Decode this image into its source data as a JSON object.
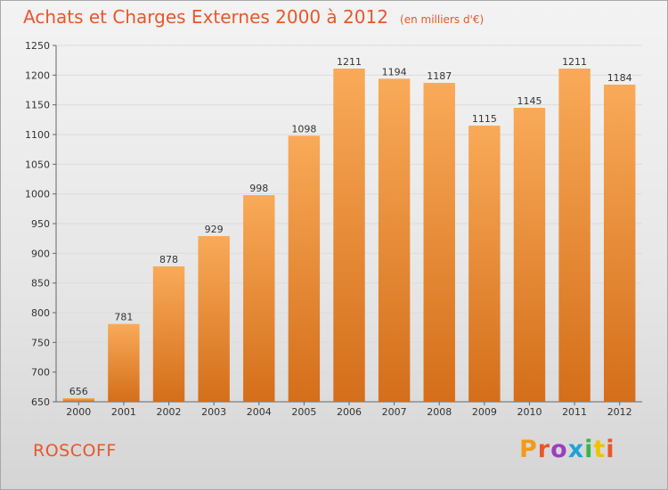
{
  "header": {
    "title": "Achats et Charges Externes 2000 à 2012",
    "subtitle": "(en milliers d'€)"
  },
  "footer": {
    "commune": "ROSCOFF",
    "brand": "Proxiti",
    "brand_colors": [
      "#f29a1a",
      "#e8572a",
      "#9b3fbf",
      "#1fa3d6",
      "#3cb34a",
      "#f2c200",
      "#e8572a"
    ]
  },
  "colors": {
    "bar_light": "#f9aa58",
    "bar_dark": "#d46e1a",
    "grid": "#dcdcdc",
    "axis": "#666666",
    "title": "#e8572a"
  },
  "chart_data": {
    "type": "bar",
    "title": "Achats et Charges Externes 2000 à 2012",
    "subtitle": "(en milliers d'€)",
    "categories": [
      "2000",
      "2001",
      "2002",
      "2003",
      "2004",
      "2005",
      "2006",
      "2007",
      "2008",
      "2009",
      "2010",
      "2011",
      "2012"
    ],
    "values": [
      656,
      781,
      878,
      929,
      998,
      1098,
      1211,
      1194,
      1187,
      1115,
      1145,
      1211,
      1184
    ],
    "ylim": [
      650,
      1250
    ],
    "yticks": [
      650,
      700,
      750,
      800,
      850,
      900,
      950,
      1000,
      1050,
      1100,
      1150,
      1200,
      1250
    ],
    "grid": true,
    "legend": "none",
    "xlabel": "",
    "ylabel": ""
  }
}
